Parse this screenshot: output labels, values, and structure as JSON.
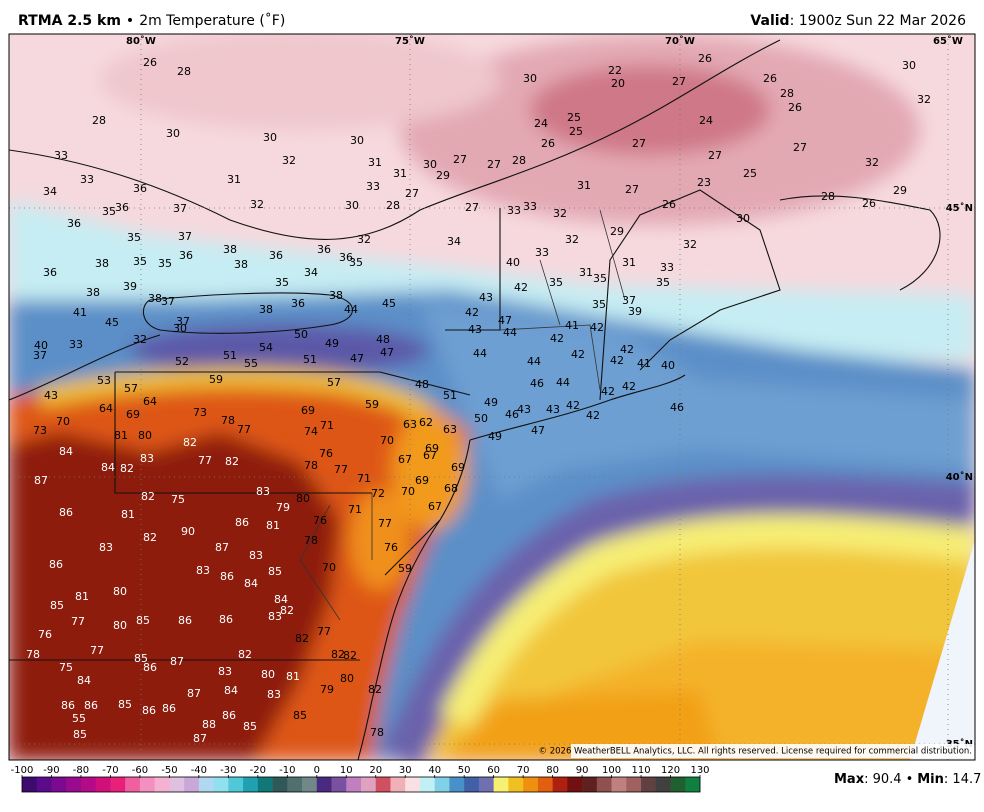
{
  "header": {
    "title": "RTMA 2.5 km",
    "separator": "•",
    "subtitle": "2m Temperature (˚F)",
    "valid_label": "Valid",
    "valid_text": ": 1900z Sun 22 Mar 2026"
  },
  "map": {
    "longitude_labels": [
      "80˚W",
      "75˚W",
      "70˚W",
      "65˚W"
    ],
    "latitude_labels": [
      "45˚N",
      "40˚N",
      "35˚N"
    ],
    "copyright": "© 2026 WeatherBELL Analytics, LLC. All rights reserved. License required for commercial distribution.",
    "station_values": [
      26,
      28,
      28,
      30,
      30,
      30,
      32,
      31,
      30,
      27,
      27,
      28,
      33,
      33,
      31,
      33,
      31,
      29,
      27,
      28,
      30,
      32,
      37,
      36,
      35,
      36,
      34,
      36,
      35,
      37,
      38,
      35,
      35,
      36,
      38,
      36,
      34,
      35,
      36,
      32,
      35,
      36,
      38,
      36,
      38,
      39,
      38,
      37,
      41,
      45,
      38,
      36,
      38,
      45,
      44,
      40,
      37,
      33,
      32,
      30,
      37,
      52,
      51,
      54,
      55,
      50,
      51,
      49,
      48,
      47,
      47,
      30,
      22,
      20,
      27,
      26,
      26,
      28,
      26,
      30,
      32,
      24,
      25,
      25,
      26,
      27,
      24,
      27,
      25,
      23,
      27,
      32,
      29,
      28,
      26,
      26,
      30,
      33,
      33,
      32,
      32,
      29,
      31,
      27,
      34,
      27,
      40,
      42,
      33,
      35,
      31,
      31,
      32,
      33,
      35,
      35,
      35,
      37,
      39,
      43,
      42,
      43,
      47,
      44,
      44,
      41,
      42,
      42,
      42,
      44,
      46,
      44,
      42,
      42,
      41,
      40,
      42,
      42,
      42,
      42,
      43,
      43,
      46,
      46,
      48,
      51,
      49,
      50,
      49,
      47,
      63,
      62,
      63,
      70,
      69,
      67,
      67,
      69,
      69,
      68,
      70,
      67,
      72,
      71,
      77,
      76,
      59,
      43,
      53,
      57,
      57,
      59,
      59,
      64,
      64,
      69,
      70,
      73,
      73,
      78,
      77,
      81,
      80,
      82,
      84,
      84,
      82,
      83,
      77,
      82,
      69,
      74,
      76,
      78,
      77,
      71,
      87,
      82,
      75,
      83,
      80,
      79,
      76,
      71,
      86,
      81,
      82,
      90,
      86,
      81,
      78,
      83,
      87,
      83,
      85,
      70,
      86,
      83,
      86,
      84,
      85,
      81,
      80,
      84,
      82,
      83,
      77,
      80,
      85,
      86,
      86,
      76,
      77,
      82,
      77,
      82,
      78,
      85,
      86,
      87,
      82,
      82,
      75,
      83,
      80,
      81,
      80,
      79,
      84,
      84,
      87,
      83,
      82,
      86,
      86,
      85,
      86,
      86,
      85,
      86,
      88,
      85,
      87,
      55,
      85,
      78
    ]
  },
  "colorbar": {
    "ticks": [
      -100,
      -90,
      -80,
      -70,
      -60,
      -50,
      -40,
      -30,
      -20,
      -10,
      0,
      10,
      20,
      30,
      40,
      50,
      60,
      70,
      80,
      90,
      100,
      110,
      120,
      130
    ],
    "colors": [
      "#3d0a6e",
      "#5a0a8a",
      "#7a0a90",
      "#9a0a8e",
      "#b40a88",
      "#d0107a",
      "#e8207a",
      "#f060a0",
      "#f490c0",
      "#f6b0d0",
      "#e0c0e0",
      "#c8a8d8",
      "#b0d8f0",
      "#90e0f0",
      "#50c8d8",
      "#20a0b0",
      "#107878",
      "#305858",
      "#507070",
      "#708888",
      "#4a2a80",
      "#7a50a0",
      "#c080c0",
      "#e0a0c0",
      "#d05060",
      "#f0b0b8",
      "#f8e0e4",
      "#c0f0f4",
      "#80d0e8",
      "#4890c8",
      "#4060a8",
      "#7070b0",
      "#f8f070",
      "#f0c020",
      "#f09010",
      "#e06010",
      "#b02010",
      "#701010",
      "#602020",
      "#905050",
      "#c08080",
      "#a06060",
      "#604040",
      "#404040",
      "#206030",
      "#108040"
    ]
  },
  "stats": {
    "max_label": "Max",
    "max_text": ": 90.4",
    "separator": "•",
    "min_label": "Min",
    "min_text": ": 14.7"
  }
}
